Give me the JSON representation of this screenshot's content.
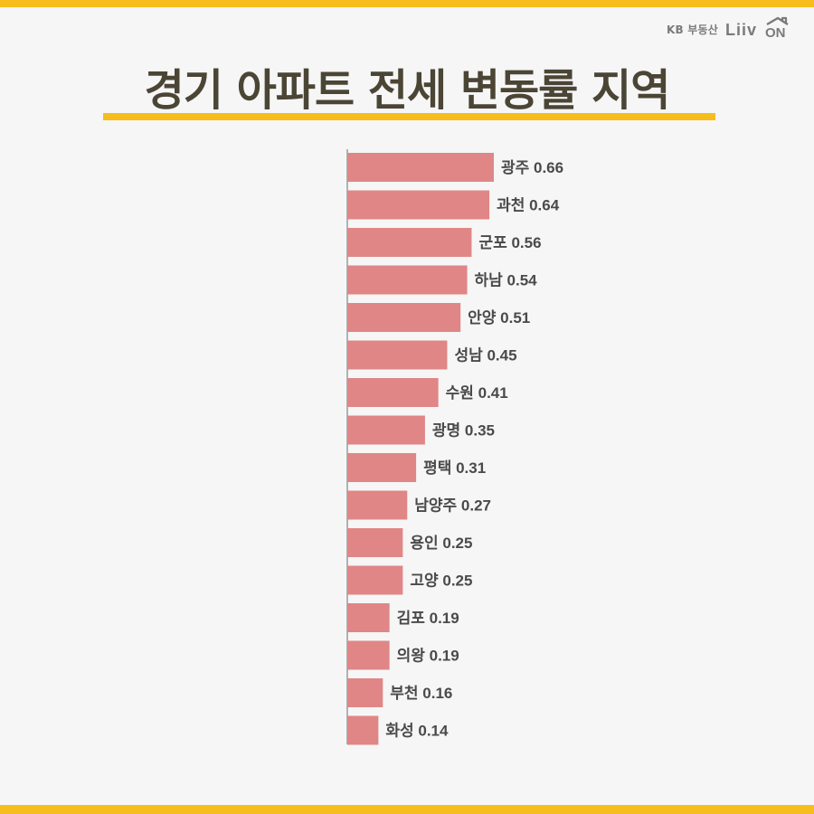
{
  "brand": {
    "company_text": "KB 부동산",
    "logo_text": "Liiv ON",
    "logo_icon": "house-roof-icon",
    "accent_color": "#f7bd1c"
  },
  "title": "경기 아파트 전세 변동률 지역",
  "colors": {
    "bar": "#e08686",
    "axis": "#9a9a9a",
    "label": "#4a4a4a",
    "title": "#4b4535",
    "background": "#f6f6f6"
  },
  "chart_data": {
    "type": "bar",
    "orientation": "horizontal",
    "title": "경기 아파트 전세 변동률 지역",
    "xlabel": "",
    "ylabel": "",
    "grid": false,
    "xlim": [
      0,
      0.66
    ],
    "categories": [
      "광주",
      "과천",
      "군포",
      "하남",
      "안양",
      "성남",
      "수원",
      "광명",
      "평택",
      "남양주",
      "용인",
      "고양",
      "김포",
      "의왕",
      "부천",
      "화성"
    ],
    "values": [
      0.66,
      0.64,
      0.56,
      0.54,
      0.51,
      0.45,
      0.41,
      0.35,
      0.31,
      0.27,
      0.25,
      0.25,
      0.19,
      0.19,
      0.16,
      0.14
    ],
    "data_labels": [
      "광주 0.66",
      "과천 0.64",
      "군포 0.56",
      "하남 0.54",
      "안양 0.51",
      "성남 0.45",
      "수원 0.41",
      "광명 0.35",
      "평택 0.31",
      "남양주 0.27",
      "용인 0.25",
      "고양 0.25",
      "김포 0.19",
      "의왕 0.19",
      "부천 0.16",
      "화성 0.14"
    ]
  }
}
